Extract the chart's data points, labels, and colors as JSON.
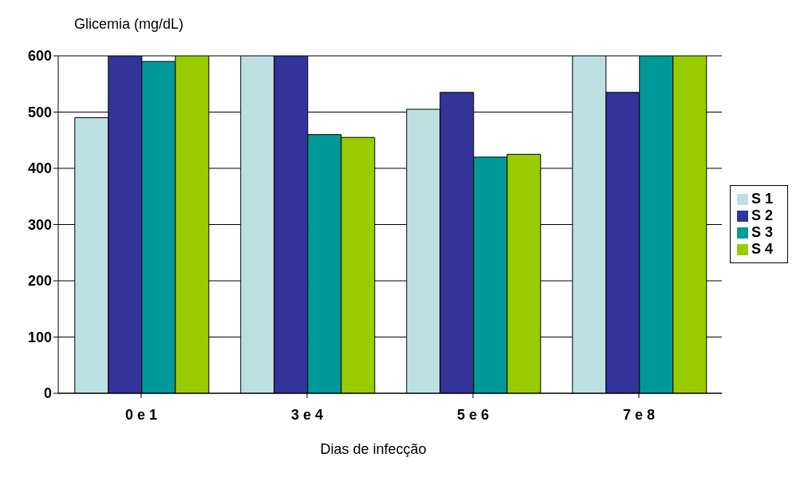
{
  "chart_data": {
    "type": "bar",
    "ylabel": "Glicemia (mg/dL)",
    "xlabel": "Dias de infecção",
    "categories": [
      "0 e 1",
      "3 e 4",
      "5 e 6",
      "7 e 8"
    ],
    "series": [
      {
        "name": "S 1",
        "color": "#bde0e3",
        "values": [
          490,
          600,
          505,
          600
        ]
      },
      {
        "name": "S 2",
        "color": "#333399",
        "values": [
          600,
          600,
          535,
          535
        ]
      },
      {
        "name": "S 3",
        "color": "#009999",
        "values": [
          590,
          460,
          420,
          600
        ]
      },
      {
        "name": "S 4",
        "color": "#99cc00",
        "values": [
          600,
          455,
          425,
          600
        ]
      }
    ],
    "ylim": [
      0,
      600
    ],
    "yticks": [
      0,
      100,
      200,
      300,
      400,
      500,
      600
    ],
    "grid": "y",
    "legend": "right"
  }
}
